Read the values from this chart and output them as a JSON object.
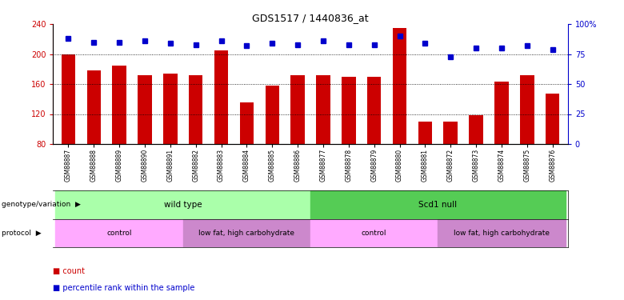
{
  "title": "GDS1517 / 1440836_at",
  "samples": [
    "GSM88887",
    "GSM88888",
    "GSM88889",
    "GSM88890",
    "GSM88891",
    "GSM88882",
    "GSM88883",
    "GSM88884",
    "GSM88885",
    "GSM88886",
    "GSM88877",
    "GSM88878",
    "GSM88879",
    "GSM88880",
    "GSM88881",
    "GSM88872",
    "GSM88873",
    "GSM88874",
    "GSM88875",
    "GSM88876"
  ],
  "counts": [
    200,
    178,
    185,
    172,
    174,
    172,
    205,
    136,
    158,
    172,
    172,
    170,
    170,
    235,
    110,
    110,
    118,
    163,
    172,
    147
  ],
  "percentiles": [
    88,
    85,
    85,
    86,
    84,
    83,
    86,
    82,
    84,
    83,
    86,
    83,
    83,
    90,
    84,
    73,
    80,
    80,
    82,
    79
  ],
  "y_min": 80,
  "y_max": 240,
  "y_ticks": [
    80,
    120,
    160,
    200,
    240
  ],
  "pct_ticks": [
    0,
    25,
    50,
    75,
    100
  ],
  "bar_color": "#cc0000",
  "dot_color": "#0000cc",
  "genotype_groups": [
    {
      "label": "wild type",
      "start": 0,
      "end": 10,
      "color": "#aaffaa"
    },
    {
      "label": "Scd1 null",
      "start": 10,
      "end": 20,
      "color": "#55cc55"
    }
  ],
  "protocol_groups": [
    {
      "label": "control",
      "start": 0,
      "end": 5,
      "color": "#ffaaff"
    },
    {
      "label": "low fat, high carbohydrate",
      "start": 5,
      "end": 10,
      "color": "#cc88cc"
    },
    {
      "label": "control",
      "start": 10,
      "end": 15,
      "color": "#ffaaff"
    },
    {
      "label": "low fat, high carbohydrate",
      "start": 15,
      "end": 20,
      "color": "#cc88cc"
    }
  ],
  "legend_count_color": "#cc0000",
  "legend_pct_color": "#0000cc",
  "bg_color": "#ffffff",
  "left_label_color": "#cc0000",
  "right_label_color": "#0000cc",
  "grid_color": "#000000"
}
